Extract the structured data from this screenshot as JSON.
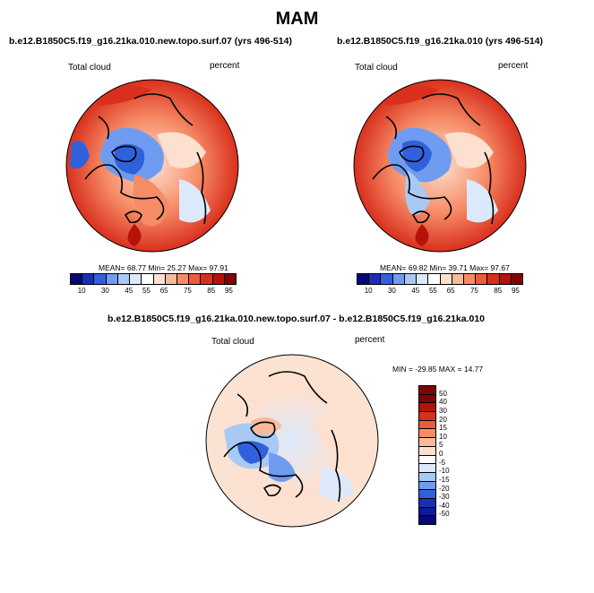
{
  "title": "MAM",
  "panels": {
    "left": {
      "title": "b.e12.B1850C5.f19_g16.21ka.010.new.topo.surf.07 (yrs 496-514)",
      "variable": "Total cloud",
      "units": "percent",
      "stats": "MEAN=  68.77  Min=  25.27  Max=  97.91"
    },
    "right": {
      "title": "b.e12.B1850C5.f19_g16.21ka.010 (yrs 496-514)",
      "variable": "Total cloud",
      "units": "percent",
      "stats": "MEAN=  69.82  Min=  39.71  Max=  97.67"
    },
    "diff": {
      "title": "b.e12.B1850C5.f19_g16.21ka.010.new.topo.surf.07 - b.e12.B1850C5.f19_g16.21ka.010",
      "variable": "Total cloud",
      "units": "percent",
      "stats": "MIN = -29.85 MAX =  14.77"
    }
  },
  "colorbar_abs": {
    "labels": [
      "10",
      "30",
      "45",
      "55",
      "65",
      "75",
      "85",
      "95"
    ],
    "colors": [
      "#08077a",
      "#1a2fb5",
      "#3061dc",
      "#6f9cf0",
      "#a9c9f5",
      "#dce9fb",
      "#ffffff",
      "#fde0cf",
      "#fbb999",
      "#f68c66",
      "#ec5c3d",
      "#d9301d",
      "#b51209",
      "#7f0502"
    ]
  },
  "colorbar_diff": {
    "labels": [
      "50",
      "40",
      "30",
      "20",
      "15",
      "10",
      "5",
      "0",
      "-5",
      "-10",
      "-15",
      "-20",
      "-30",
      "-40",
      "-50"
    ],
    "colors": [
      "#7f0502",
      "#b51209",
      "#d9301d",
      "#ec5c3d",
      "#f68c66",
      "#fbb999",
      "#fde0cf",
      "#ffffff",
      "#dce9fb",
      "#a9c9f5",
      "#6f9cf0",
      "#3061dc",
      "#1a2fb5",
      "#0f1a96",
      "#08077a"
    ]
  }
}
